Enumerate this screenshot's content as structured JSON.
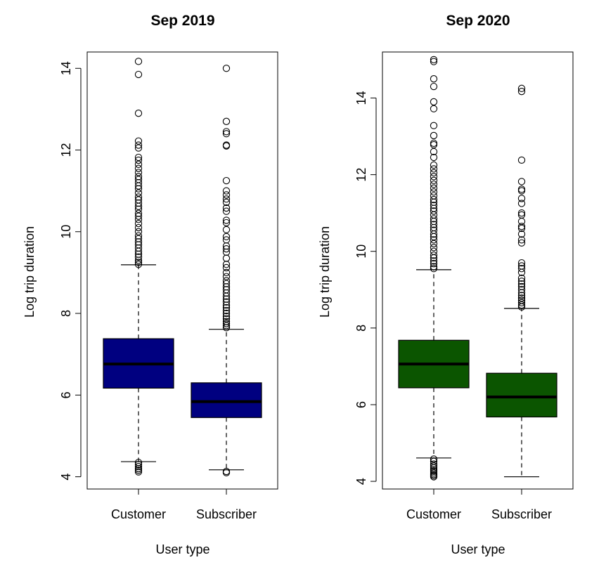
{
  "chart_data": [
    {
      "type": "box",
      "title": "Sep 2019",
      "xlabel": "User type",
      "ylabel": "Log trip duration",
      "ylim": [
        3.7,
        14.4
      ],
      "yticks": [
        4,
        6,
        8,
        10,
        12,
        14
      ],
      "box_color": "#000080",
      "categories": [
        "Customer",
        "Subscriber"
      ],
      "boxes": [
        {
          "category": "Customer",
          "min": 4.37,
          "q1": 6.17,
          "median": 6.76,
          "q3": 7.38,
          "max": 9.19,
          "outliers": [
            4.12,
            4.16,
            4.2,
            4.25,
            4.3,
            4.35,
            9.2,
            9.25,
            9.3,
            9.38,
            9.45,
            9.52,
            9.6,
            9.68,
            9.75,
            9.83,
            9.9,
            10.0,
            10.1,
            10.2,
            10.3,
            10.38,
            10.45,
            10.55,
            10.62,
            10.7,
            10.78,
            10.85,
            10.95,
            11.05,
            11.12,
            11.2,
            11.28,
            11.35,
            11.45,
            11.55,
            11.65,
            11.75,
            11.82,
            12.05,
            12.12,
            12.22,
            12.9,
            13.85,
            14.17
          ]
        },
        {
          "category": "Subscriber",
          "min": 4.17,
          "q1": 5.45,
          "median": 5.84,
          "q3": 6.3,
          "max": 7.61,
          "outliers": [
            4.1,
            4.13,
            7.65,
            7.7,
            7.75,
            7.8,
            7.87,
            7.93,
            8.0,
            8.07,
            8.14,
            8.2,
            8.28,
            8.35,
            8.42,
            8.5,
            8.58,
            8.65,
            8.73,
            8.8,
            8.9,
            9.0,
            9.12,
            9.2,
            9.35,
            9.5,
            9.58,
            9.65,
            9.8,
            9.88,
            10.05,
            10.22,
            10.28,
            10.5,
            10.58,
            10.72,
            10.8,
            10.9,
            11.0,
            11.25,
            12.1,
            12.12,
            12.4,
            12.45,
            12.7,
            14.0
          ]
        }
      ]
    },
    {
      "type": "box",
      "title": "Sep 2020",
      "xlabel": "User type",
      "ylabel": "Log trip duration",
      "ylim": [
        3.8,
        15.2
      ],
      "yticks": [
        4,
        6,
        8,
        10,
        12,
        14
      ],
      "box_color": "#0b5500",
      "categories": [
        "Customer",
        "Subscriber"
      ],
      "boxes": [
        {
          "category": "Customer",
          "min": 4.61,
          "q1": 6.44,
          "median": 7.06,
          "q3": 7.68,
          "max": 9.52,
          "outliers": [
            4.12,
            4.15,
            4.18,
            4.22,
            4.26,
            4.3,
            4.35,
            4.4,
            4.45,
            4.52,
            4.58,
            9.55,
            9.6,
            9.68,
            9.75,
            9.83,
            9.9,
            10.0,
            10.1,
            10.2,
            10.3,
            10.38,
            10.45,
            10.55,
            10.62,
            10.7,
            10.78,
            10.85,
            10.95,
            11.05,
            11.12,
            11.2,
            11.28,
            11.35,
            11.45,
            11.55,
            11.65,
            11.75,
            11.85,
            11.95,
            12.05,
            12.15,
            12.25,
            12.45,
            12.6,
            12.78,
            12.82,
            13.02,
            13.28,
            13.72,
            13.9,
            14.3,
            14.5,
            14.95,
            15.0
          ]
        },
        {
          "category": "Subscriber",
          "min": 4.12,
          "q1": 5.68,
          "median": 6.2,
          "q3": 6.82,
          "max": 8.51,
          "outliers": [
            8.55,
            8.6,
            8.66,
            8.72,
            8.78,
            8.85,
            8.92,
            9.0,
            9.08,
            9.15,
            9.22,
            9.3,
            9.45,
            9.55,
            9.62,
            9.7,
            10.22,
            10.3,
            10.45,
            10.6,
            10.65,
            10.78,
            10.95,
            11.0,
            11.25,
            11.38,
            11.58,
            11.62,
            11.82,
            12.38,
            14.17,
            14.25
          ]
        }
      ]
    }
  ]
}
